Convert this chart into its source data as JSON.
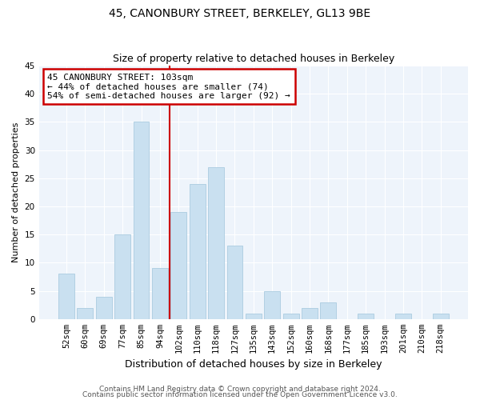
{
  "title": "45, CANONBURY STREET, BERKELEY, GL13 9BE",
  "subtitle": "Size of property relative to detached houses in Berkeley",
  "xlabel": "Distribution of detached houses by size in Berkeley",
  "ylabel": "Number of detached properties",
  "bar_color": "#c9e0f0",
  "bar_edge_color": "#aacce0",
  "categories": [
    "52sqm",
    "60sqm",
    "69sqm",
    "77sqm",
    "85sqm",
    "94sqm",
    "102sqm",
    "110sqm",
    "118sqm",
    "127sqm",
    "135sqm",
    "143sqm",
    "152sqm",
    "160sqm",
    "168sqm",
    "177sqm",
    "185sqm",
    "193sqm",
    "201sqm",
    "210sqm",
    "218sqm"
  ],
  "values": [
    8,
    2,
    4,
    15,
    35,
    9,
    19,
    24,
    27,
    13,
    1,
    5,
    1,
    2,
    3,
    0,
    1,
    0,
    1,
    0,
    1
  ],
  "vline_color": "#cc0000",
  "vline_bar_index": 6,
  "annotation_title": "45 CANONBURY STREET: 103sqm",
  "annotation_line1": "← 44% of detached houses are smaller (74)",
  "annotation_line2": "54% of semi-detached houses are larger (92) →",
  "annotation_box_facecolor": "#ffffff",
  "annotation_box_edgecolor": "#cc0000",
  "ylim": [
    0,
    45
  ],
  "yticks": [
    0,
    5,
    10,
    15,
    20,
    25,
    30,
    35,
    40,
    45
  ],
  "footer_line1": "Contains HM Land Registry data © Crown copyright and database right 2024.",
  "footer_line2": "Contains public sector information licensed under the Open Government Licence v3.0.",
  "bg_color": "#eef4fb",
  "title_fontsize": 10,
  "subtitle_fontsize": 9,
  "xlabel_fontsize": 9,
  "ylabel_fontsize": 8,
  "tick_fontsize": 7.5,
  "annotation_fontsize": 8,
  "footer_fontsize": 6.5
}
